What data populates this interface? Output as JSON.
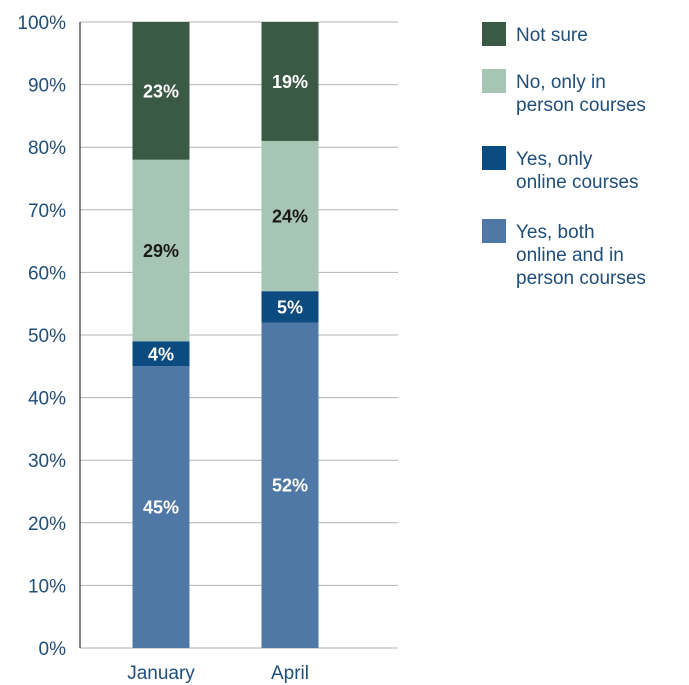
{
  "chart_data": {
    "type": "bar",
    "stacked": true,
    "categories": [
      "January",
      "April"
    ],
    "series": [
      {
        "name": "Yes, both online and in person courses",
        "values": [
          45,
          52
        ],
        "labels": [
          "45%",
          "52%"
        ],
        "color": "#4f78a6",
        "label_color": "#ffffff"
      },
      {
        "name": "Yes, only online courses",
        "values": [
          4,
          5
        ],
        "labels": [
          "4%",
          "5%"
        ],
        "color": "#0c4b80",
        "label_color": "#ffffff"
      },
      {
        "name": "No, only in person courses",
        "values": [
          29,
          24
        ],
        "labels": [
          "29%",
          "24%"
        ],
        "color": "#a7c5b5",
        "label_color": "#1a1a1a"
      },
      {
        "name": "Not sure",
        "values": [
          23,
          19
        ],
        "labels": [
          "23%",
          "19%"
        ],
        "color": "#3a5a46",
        "label_color": "#ffffff"
      }
    ],
    "yticks": [
      "0%",
      "10%",
      "20%",
      "30%",
      "40%",
      "50%",
      "60%",
      "70%",
      "80%",
      "90%",
      "100%"
    ],
    "ylim": [
      0,
      100
    ],
    "grid": true,
    "legend": {
      "position": "right",
      "entries": [
        {
          "lines": [
            "Not sure"
          ],
          "color": "#3a5a46"
        },
        {
          "lines": [
            "No, only in",
            "person courses"
          ],
          "color": "#a7c5b5"
        },
        {
          "lines": [
            "Yes, only",
            "online courses"
          ],
          "color": "#0c4b80"
        },
        {
          "lines": [
            "Yes, both",
            "online and in",
            "person courses"
          ],
          "color": "#4f78a6"
        }
      ]
    }
  }
}
